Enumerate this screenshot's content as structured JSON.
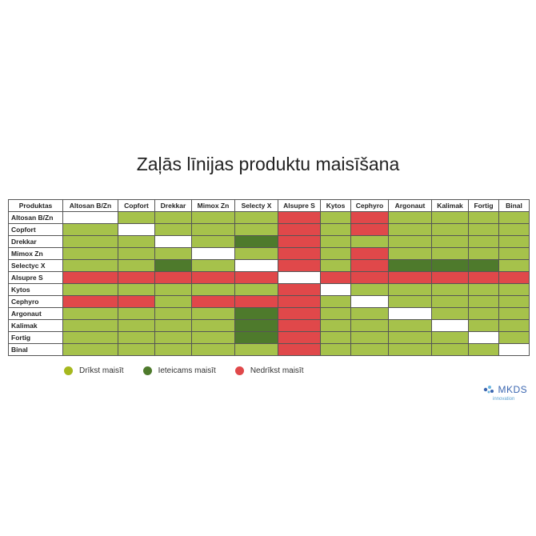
{
  "header": {
    "title": "Zaļās līnijas produktu maisīšana"
  },
  "table": {
    "corner": "Produktas",
    "columns": [
      "Altosan B/Zn",
      "Copfort",
      "Drekkar",
      "Mimox Zn",
      "Selecty  X",
      "Alsupre S",
      "Kytos",
      "Cephyro",
      "Argonaut",
      "Kalimak",
      "Fortig",
      "Binal"
    ],
    "rows": [
      "Altosan B/Zn",
      "Copfort",
      "Drekkar",
      "Mimox Zn",
      "Selectyc X",
      "Alsupre S",
      "Kytos",
      "Cephyro",
      "Argonaut",
      "Kalimak",
      "Fortig",
      "Binal"
    ],
    "cells": [
      [
        "#ffffff",
        "#a6c24b",
        "#a6c24b",
        "#a6c24b",
        "#a6c24b",
        "#e0484a",
        "#a6c24b",
        "#e0484a",
        "#a6c24b",
        "#a6c24b",
        "#a6c24b",
        "#a6c24b"
      ],
      [
        "#a6c24b",
        "#ffffff",
        "#a6c24b",
        "#a6c24b",
        "#a6c24b",
        "#e0484a",
        "#a6c24b",
        "#e0484a",
        "#a6c24b",
        "#a6c24b",
        "#a6c24b",
        "#a6c24b"
      ],
      [
        "#a6c24b",
        "#a6c24b",
        "#ffffff",
        "#a6c24b",
        "#4e7a2c",
        "#e0484a",
        "#a6c24b",
        "#a6c24b",
        "#a6c24b",
        "#a6c24b",
        "#a6c24b",
        "#a6c24b"
      ],
      [
        "#a6c24b",
        "#a6c24b",
        "#a6c24b",
        "#ffffff",
        "#a6c24b",
        "#e0484a",
        "#a6c24b",
        "#e0484a",
        "#a6c24b",
        "#a6c24b",
        "#a6c24b",
        "#a6c24b"
      ],
      [
        "#a6c24b",
        "#a6c24b",
        "#4e7a2c",
        "#a6c24b",
        "#ffffff",
        "#e0484a",
        "#a6c24b",
        "#e0484a",
        "#4e7a2c",
        "#4e7a2c",
        "#4e7a2c",
        "#a6c24b"
      ],
      [
        "#e0484a",
        "#e0484a",
        "#e0484a",
        "#e0484a",
        "#e0484a",
        "#ffffff",
        "#e0484a",
        "#e0484a",
        "#e0484a",
        "#e0484a",
        "#e0484a",
        "#e0484a"
      ],
      [
        "#a6c24b",
        "#a6c24b",
        "#a6c24b",
        "#a6c24b",
        "#a6c24b",
        "#e0484a",
        "#ffffff",
        "#a6c24b",
        "#a6c24b",
        "#a6c24b",
        "#a6c24b",
        "#a6c24b"
      ],
      [
        "#e0484a",
        "#e0484a",
        "#a6c24b",
        "#e0484a",
        "#e0484a",
        "#e0484a",
        "#a6c24b",
        "#ffffff",
        "#a6c24b",
        "#a6c24b",
        "#a6c24b",
        "#a6c24b"
      ],
      [
        "#a6c24b",
        "#a6c24b",
        "#a6c24b",
        "#a6c24b",
        "#4e7a2c",
        "#e0484a",
        "#a6c24b",
        "#a6c24b",
        "#ffffff",
        "#a6c24b",
        "#a6c24b",
        "#a6c24b"
      ],
      [
        "#a6c24b",
        "#a6c24b",
        "#a6c24b",
        "#a6c24b",
        "#4e7a2c",
        "#e0484a",
        "#a6c24b",
        "#a6c24b",
        "#a6c24b",
        "#ffffff",
        "#a6c24b",
        "#a6c24b"
      ],
      [
        "#a6c24b",
        "#a6c24b",
        "#a6c24b",
        "#a6c24b",
        "#4e7a2c",
        "#e0484a",
        "#a6c24b",
        "#a6c24b",
        "#a6c24b",
        "#a6c24b",
        "#ffffff",
        "#a6c24b"
      ],
      [
        "#a6c24b",
        "#a6c24b",
        "#a6c24b",
        "#a6c24b",
        "#a6c24b",
        "#e0484a",
        "#a6c24b",
        "#a6c24b",
        "#a6c24b",
        "#a6c24b",
        "#a6c24b",
        "#ffffff"
      ]
    ]
  },
  "legend": [
    {
      "label": "Drīkst maisīt",
      "color": "#a6b81e"
    },
    {
      "label": "Ieteicams maisīt",
      "color": "#4e7a2c"
    },
    {
      "label": "Nedrīkst maisīt",
      "color": "#e0484a"
    }
  ],
  "logo": {
    "name": "MKDS",
    "tagline": "innovation"
  }
}
